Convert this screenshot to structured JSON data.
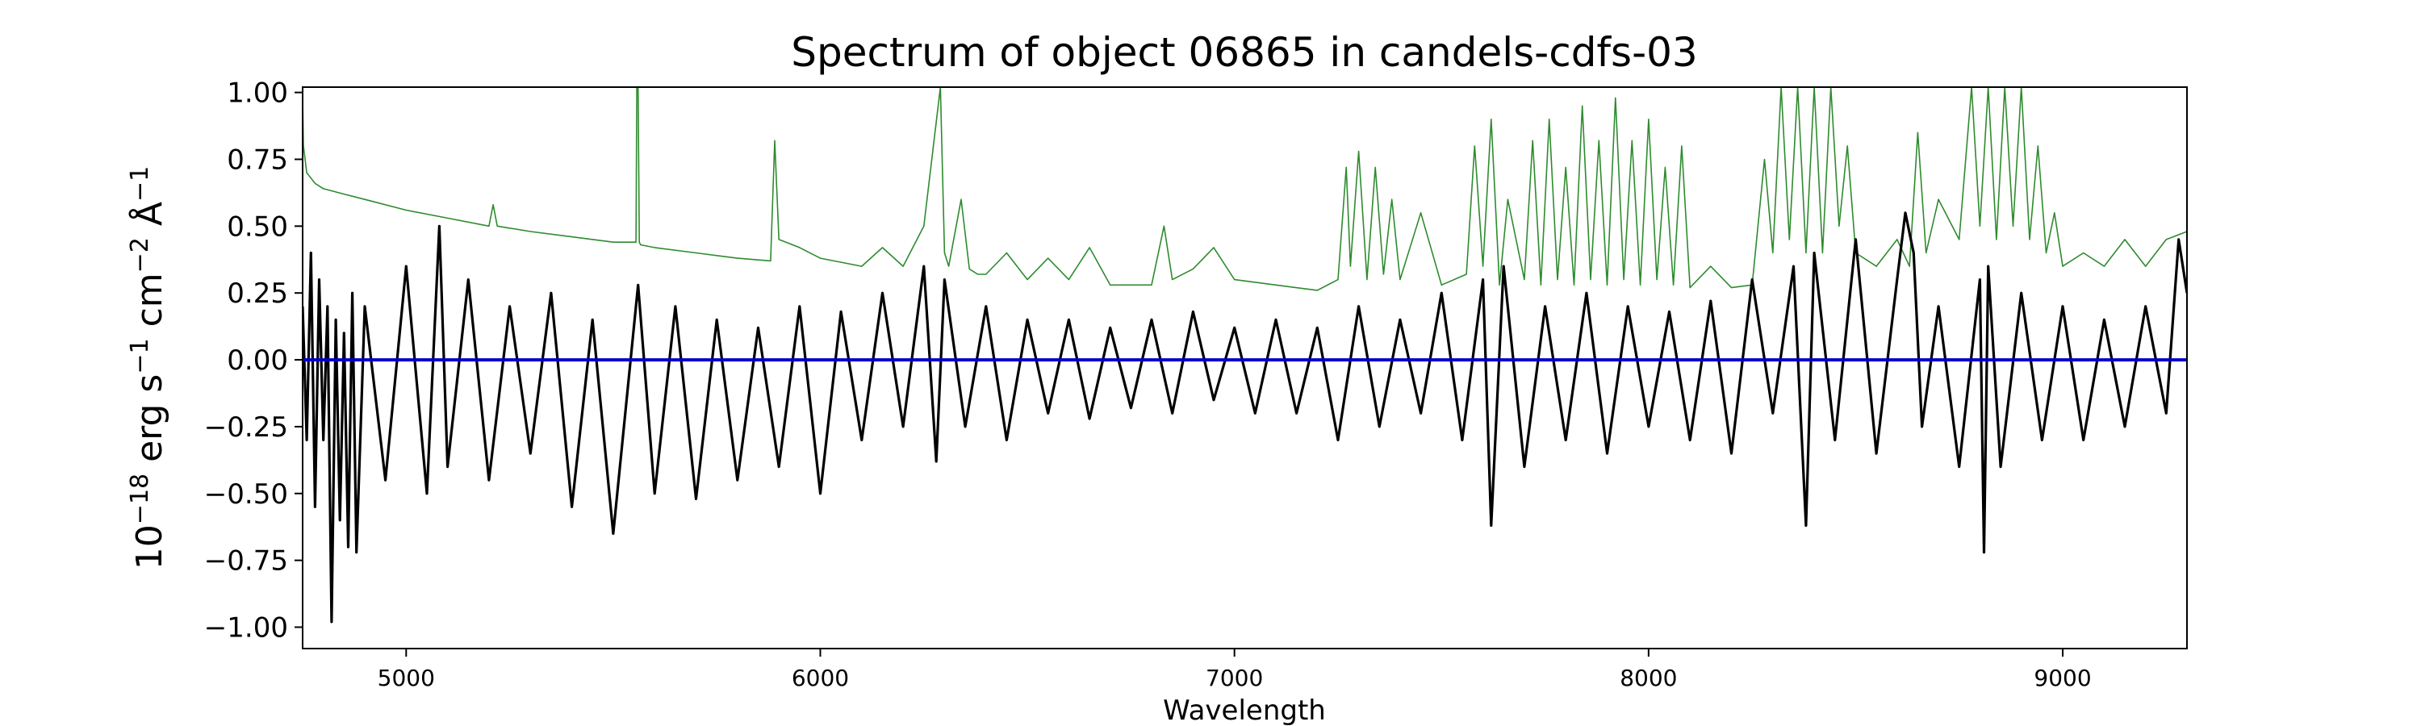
{
  "chart_data": {
    "type": "line",
    "title": "Spectrum of object 06865 in candels-cdfs-03",
    "xlabel": "Wavelength",
    "ylabel": {
      "base": "10",
      "exp": "−18",
      "t1": " erg s",
      "e1": "−1",
      "t2": " cm",
      "e2": "−2",
      "t3": " Å",
      "e3": "−1"
    },
    "xlim": [
      4750,
      9300
    ],
    "ylim": [
      -1.08,
      1.02
    ],
    "x_ticks": [
      5000,
      6000,
      7000,
      8000,
      9000
    ],
    "y_ticks": [
      1.0,
      0.75,
      0.5,
      0.25,
      0.0,
      -0.25,
      -0.5,
      -0.75,
      -1.0
    ],
    "x_tick_labels": [
      "5000",
      "6000",
      "7000",
      "8000",
      "9000"
    ],
    "y_tick_labels": [
      "1.00",
      "0.75",
      "0.50",
      "0.25",
      "0.00",
      "−0.25",
      "−0.50",
      "−0.75",
      "−1.00"
    ],
    "grid": false,
    "colors": {
      "flux": "#000000",
      "noise": "#2e8b2e",
      "zero": "#0000cc"
    },
    "series": [
      {
        "role": "flux",
        "x": [
          4750,
          4760,
          4770,
          4780,
          4790,
          4800,
          4810,
          4820,
          4830,
          4840,
          4850,
          4860,
          4870,
          4880,
          4900,
          4950,
          5000,
          5050,
          5080,
          5100,
          5150,
          5200,
          5250,
          5300,
          5350,
          5400,
          5450,
          5500,
          5560,
          5600,
          5650,
          5700,
          5750,
          5800,
          5850,
          5900,
          5950,
          6000,
          6050,
          6100,
          6150,
          6200,
          6250,
          6280,
          6300,
          6350,
          6400,
          6450,
          6500,
          6550,
          6600,
          6650,
          6700,
          6750,
          6800,
          6850,
          6900,
          6950,
          7000,
          7050,
          7100,
          7150,
          7200,
          7250,
          7300,
          7350,
          7400,
          7450,
          7500,
          7550,
          7600,
          7620,
          7650,
          7700,
          7750,
          7800,
          7850,
          7900,
          7950,
          8000,
          8050,
          8100,
          8150,
          8200,
          8250,
          8300,
          8350,
          8380,
          8400,
          8450,
          8500,
          8550,
          8600,
          8620,
          8640,
          8660,
          8700,
          8750,
          8800,
          8810,
          8820,
          8850,
          8900,
          8950,
          9000,
          9050,
          9100,
          9150,
          9200,
          9250,
          9280,
          9300
        ],
        "values": [
          0.2,
          -0.3,
          0.4,
          -0.55,
          0.3,
          -0.3,
          0.2,
          -0.98,
          0.15,
          -0.6,
          0.1,
          -0.7,
          0.25,
          -0.72,
          0.2,
          -0.45,
          0.35,
          -0.5,
          0.5,
          -0.4,
          0.3,
          -0.45,
          0.2,
          -0.35,
          0.25,
          -0.55,
          0.15,
          -0.65,
          0.28,
          -0.5,
          0.2,
          -0.52,
          0.15,
          -0.45,
          0.12,
          -0.4,
          0.2,
          -0.5,
          0.18,
          -0.3,
          0.25,
          -0.25,
          0.35,
          -0.38,
          0.3,
          -0.25,
          0.2,
          -0.3,
          0.15,
          -0.2,
          0.15,
          -0.22,
          0.12,
          -0.18,
          0.15,
          -0.2,
          0.18,
          -0.15,
          0.12,
          -0.2,
          0.15,
          -0.2,
          0.12,
          -0.3,
          0.2,
          -0.25,
          0.15,
          -0.2,
          0.25,
          -0.3,
          0.3,
          -0.62,
          0.35,
          -0.4,
          0.2,
          -0.3,
          0.25,
          -0.35,
          0.2,
          -0.25,
          0.18,
          -0.3,
          0.22,
          -0.35,
          0.3,
          -0.2,
          0.35,
          -0.62,
          0.4,
          -0.3,
          0.45,
          -0.35,
          0.3,
          0.55,
          0.4,
          -0.25,
          0.2,
          -0.4,
          0.3,
          -0.72,
          0.35,
          -0.4,
          0.25,
          -0.3,
          0.2,
          -0.3,
          0.15,
          -0.25,
          0.2,
          -0.2,
          0.45,
          0.25
        ]
      },
      {
        "role": "noise",
        "x": [
          4750,
          4752,
          4760,
          4780,
          4800,
          4850,
          4900,
          5000,
          5100,
          5200,
          5210,
          5220,
          5300,
          5400,
          5500,
          5555,
          5557,
          5560,
          5563,
          5566,
          5600,
          5700,
          5800,
          5880,
          5890,
          5900,
          5950,
          6000,
          6100,
          6150,
          6200,
          6250,
          6290,
          6300,
          6310,
          6340,
          6360,
          6380,
          6400,
          6450,
          6500,
          6550,
          6600,
          6650,
          6700,
          6800,
          6830,
          6850,
          6900,
          6950,
          7000,
          7100,
          7200,
          7250,
          7270,
          7280,
          7300,
          7320,
          7340,
          7360,
          7380,
          7400,
          7450,
          7500,
          7560,
          7580,
          7600,
          7620,
          7640,
          7660,
          7700,
          7720,
          7740,
          7760,
          7780,
          7800,
          7820,
          7840,
          7860,
          7880,
          7900,
          7920,
          7940,
          7960,
          7980,
          8000,
          8020,
          8040,
          8060,
          8080,
          8100,
          8150,
          8200,
          8250,
          8280,
          8300,
          8320,
          8340,
          8360,
          8380,
          8400,
          8420,
          8440,
          8460,
          8480,
          8500,
          8550,
          8600,
          8630,
          8650,
          8670,
          8700,
          8750,
          8780,
          8800,
          8820,
          8840,
          8860,
          8880,
          8900,
          8920,
          8940,
          8960,
          8980,
          9000,
          9050,
          9100,
          9150,
          9200,
          9250,
          9300
        ],
        "values": [
          0.98,
          0.8,
          0.7,
          0.66,
          0.64,
          0.62,
          0.6,
          0.56,
          0.53,
          0.5,
          0.58,
          0.5,
          0.48,
          0.46,
          0.44,
          0.44,
          1.02,
          1.02,
          0.44,
          0.43,
          0.42,
          0.4,
          0.38,
          0.37,
          0.82,
          0.45,
          0.42,
          0.38,
          0.35,
          0.42,
          0.35,
          0.5,
          1.02,
          0.4,
          0.35,
          0.6,
          0.34,
          0.32,
          0.32,
          0.4,
          0.3,
          0.38,
          0.3,
          0.42,
          0.28,
          0.28,
          0.5,
          0.3,
          0.34,
          0.42,
          0.3,
          0.28,
          0.26,
          0.3,
          0.72,
          0.35,
          0.78,
          0.3,
          0.72,
          0.32,
          0.6,
          0.3,
          0.55,
          0.28,
          0.32,
          0.8,
          0.35,
          0.9,
          0.28,
          0.6,
          0.3,
          0.82,
          0.28,
          0.9,
          0.3,
          0.72,
          0.28,
          0.95,
          0.3,
          0.82,
          0.28,
          0.98,
          0.3,
          0.82,
          0.28,
          0.9,
          0.3,
          0.72,
          0.28,
          0.8,
          0.27,
          0.35,
          0.27,
          0.28,
          0.75,
          0.4,
          1.02,
          0.45,
          1.02,
          0.4,
          1.02,
          0.4,
          1.02,
          0.5,
          0.8,
          0.4,
          0.35,
          0.45,
          0.35,
          0.85,
          0.4,
          0.6,
          0.45,
          1.02,
          0.5,
          1.02,
          0.45,
          1.02,
          0.5,
          1.02,
          0.45,
          0.8,
          0.4,
          0.55,
          0.35,
          0.4,
          0.35,
          0.45,
          0.35,
          0.45,
          0.48
        ]
      },
      {
        "role": "zero",
        "x": [
          4750,
          9300
        ],
        "values": [
          0.0,
          0.0
        ]
      }
    ]
  }
}
